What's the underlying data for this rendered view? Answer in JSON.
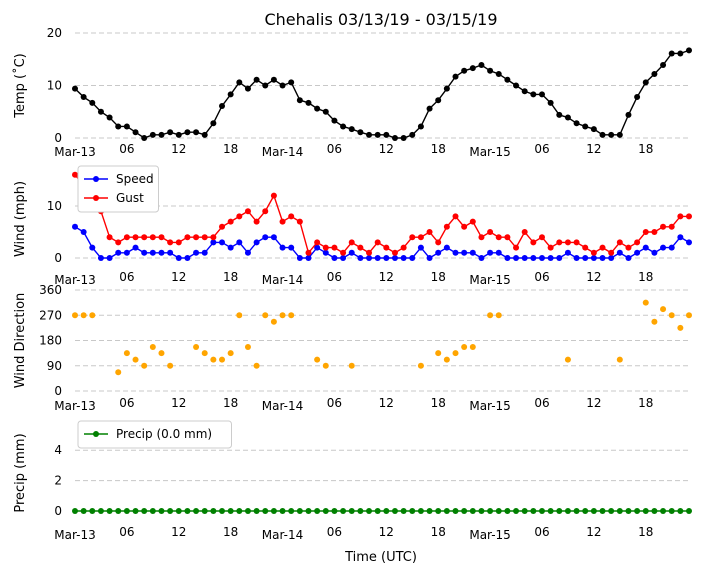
{
  "title": "Chehalis 03/13/19 - 03/15/19",
  "xlabel": "Time (UTC)",
  "x_tick_labels": [
    "Mar-13",
    "06",
    "12",
    "18",
    "Mar-14",
    "06",
    "12",
    "18",
    "Mar-15",
    "06",
    "12",
    "18"
  ],
  "x_tick_hours": [
    0,
    6,
    12,
    18,
    24,
    30,
    36,
    42,
    48,
    54,
    60,
    66
  ],
  "chart_data": [
    {
      "type": "line",
      "ylabel": "Temp (˚C)",
      "ylim": [
        0,
        20
      ],
      "yticks": [
        0,
        10,
        20
      ],
      "grid": true,
      "series": [
        {
          "color": "#000000",
          "x": [
            0,
            1,
            2,
            3,
            4,
            5,
            6,
            7,
            8,
            9,
            10,
            11,
            12,
            13,
            14,
            15,
            16,
            17,
            18,
            19,
            20,
            21,
            22,
            23,
            24,
            25,
            26,
            27,
            28,
            29,
            30,
            31,
            32,
            33,
            34,
            35,
            36,
            37,
            38,
            39,
            40,
            41,
            42,
            43,
            44,
            45,
            46,
            47,
            48,
            49,
            50,
            51,
            52,
            53,
            54,
            55,
            56,
            57,
            58,
            59,
            60,
            61,
            62,
            63,
            64,
            65,
            66,
            67,
            68,
            69,
            70,
            71
          ],
          "values": [
            9.4,
            7.8,
            6.7,
            5.0,
            3.9,
            2.2,
            2.2,
            1.1,
            0.0,
            0.6,
            0.6,
            1.1,
            0.6,
            1.1,
            1.1,
            0.6,
            2.8,
            6.1,
            8.3,
            10.6,
            9.4,
            11.1,
            10.0,
            11.1,
            10.0,
            10.6,
            7.2,
            6.7,
            5.6,
            5.0,
            3.3,
            2.2,
            1.7,
            1.1,
            0.6,
            0.6,
            0.6,
            0.0,
            0.0,
            0.6,
            2.2,
            5.6,
            7.2,
            9.4,
            11.7,
            12.8,
            13.3,
            13.9,
            12.8,
            12.2,
            11.1,
            10.0,
            8.9,
            8.3,
            8.3,
            6.7,
            4.4,
            3.9,
            2.8,
            2.2,
            1.7,
            0.6,
            0.6,
            0.6,
            4.4,
            7.8,
            10.6,
            12.2,
            13.9,
            16.1,
            16.1,
            16.7
          ]
        }
      ]
    },
    {
      "type": "line",
      "ylabel": "Wind (mph)",
      "ylim": [
        0,
        15
      ],
      "yticks": [
        0,
        10
      ],
      "grid": true,
      "legend": "top-left",
      "series": [
        {
          "name": "Speed",
          "color": "#0000ff",
          "x": [
            0,
            1,
            2,
            3,
            4,
            5,
            6,
            7,
            8,
            9,
            10,
            11,
            12,
            13,
            14,
            15,
            16,
            17,
            18,
            19,
            20,
            21,
            22,
            23,
            24,
            25,
            26,
            27,
            28,
            29,
            30,
            31,
            32,
            33,
            34,
            35,
            36,
            37,
            38,
            39,
            40,
            41,
            42,
            43,
            44,
            45,
            46,
            47,
            48,
            49,
            50,
            51,
            52,
            53,
            54,
            55,
            56,
            57,
            58,
            59,
            60,
            61,
            62,
            63,
            64,
            65,
            66,
            67,
            68,
            69,
            70,
            71
          ],
          "values": [
            6,
            5,
            2,
            0,
            0,
            1,
            1,
            2,
            1,
            1,
            1,
            1,
            0,
            0,
            1,
            1,
            3,
            3,
            2,
            3,
            1,
            3,
            4,
            4,
            2,
            2,
            0,
            0,
            2,
            1,
            0,
            0,
            1,
            0,
            0,
            0,
            0,
            0,
            0,
            0,
            2,
            0,
            1,
            2,
            1,
            1,
            1,
            0,
            1,
            1,
            0,
            0,
            0,
            0,
            0,
            0,
            0,
            1,
            0,
            0,
            0,
            0,
            0,
            1,
            0,
            1,
            2,
            1,
            2,
            2,
            4,
            3
          ]
        },
        {
          "name": "Gust",
          "color": "#ff0000",
          "x": [
            0,
            1,
            2,
            3,
            4,
            5,
            6,
            7,
            8,
            9,
            10,
            11,
            12,
            13,
            14,
            15,
            16,
            17,
            18,
            19,
            20,
            21,
            22,
            23,
            24,
            25,
            26,
            27,
            28,
            29,
            30,
            31,
            32,
            33,
            34,
            35,
            36,
            37,
            38,
            39,
            40,
            41,
            42,
            43,
            44,
            45,
            46,
            47,
            48,
            49,
            50,
            51,
            52,
            53,
            54,
            55,
            56,
            57,
            58,
            59,
            60,
            61,
            62,
            63,
            64,
            65,
            66,
            67,
            68,
            69,
            70,
            71
          ],
          "values": [
            16,
            14,
            14,
            9,
            4,
            3,
            4,
            4,
            4,
            4,
            4,
            3,
            3,
            4,
            4,
            4,
            4,
            6,
            7,
            8,
            9,
            7,
            9,
            12,
            7,
            8,
            7,
            1,
            3,
            2,
            2,
            1,
            3,
            2,
            1,
            3,
            2,
            1,
            2,
            4,
            4,
            5,
            3,
            6,
            8,
            6,
            7,
            4,
            5,
            4,
            4,
            2,
            5,
            3,
            4,
            2,
            3,
            3,
            3,
            2,
            1,
            2,
            1,
            3,
            2,
            3,
            5,
            5,
            6,
            6,
            8,
            8
          ]
        }
      ]
    },
    {
      "type": "scatter",
      "ylabel": "Wind Direction",
      "ylim": [
        0,
        360
      ],
      "yticks": [
        0,
        90,
        180,
        270,
        360
      ],
      "grid": true,
      "series": [
        {
          "color": "#ffa500",
          "x": [
            0,
            1,
            2,
            5,
            6,
            7,
            8,
            9,
            10,
            11,
            14,
            15,
            16,
            17,
            18,
            19,
            20,
            21,
            22,
            23,
            24,
            25,
            28,
            29,
            32,
            40,
            42,
            43,
            44,
            45,
            46,
            48,
            49,
            57,
            63,
            66,
            67,
            68,
            69,
            70,
            71
          ],
          "values": [
            270,
            270,
            270,
            67,
            135,
            112,
            90,
            157,
            135,
            90,
            157,
            135,
            112,
            112,
            135,
            270,
            157,
            90,
            270,
            247,
            270,
            270,
            112,
            90,
            90,
            90,
            135,
            112,
            135,
            157,
            157,
            270,
            270,
            112,
            112,
            315,
            247,
            292,
            270,
            225,
            270
          ]
        }
      ]
    },
    {
      "type": "line",
      "ylabel": "Precip (mm)",
      "ylim": [
        0,
        5
      ],
      "yticks": [
        0,
        2,
        4
      ],
      "grid": true,
      "legend": "top-left",
      "series": [
        {
          "name": "Precip (0.0 mm)",
          "color": "#008000",
          "x": [
            0,
            1,
            2,
            3,
            4,
            5,
            6,
            7,
            8,
            9,
            10,
            11,
            12,
            13,
            14,
            15,
            16,
            17,
            18,
            19,
            20,
            21,
            22,
            23,
            24,
            25,
            26,
            27,
            28,
            29,
            30,
            31,
            32,
            33,
            34,
            35,
            36,
            37,
            38,
            39,
            40,
            41,
            42,
            43,
            44,
            45,
            46,
            47,
            48,
            49,
            50,
            51,
            52,
            53,
            54,
            55,
            56,
            57,
            58,
            59,
            60,
            61,
            62,
            63,
            64,
            65,
            66,
            67,
            68,
            69,
            70,
            71
          ],
          "values": [
            0,
            0,
            0,
            0,
            0,
            0,
            0,
            0,
            0,
            0,
            0,
            0,
            0,
            0,
            0,
            0,
            0,
            0,
            0,
            0,
            0,
            0,
            0,
            0,
            0,
            0,
            0,
            0,
            0,
            0,
            0,
            0,
            0,
            0,
            0,
            0,
            0,
            0,
            0,
            0,
            0,
            0,
            0,
            0,
            0,
            0,
            0,
            0,
            0,
            0,
            0,
            0,
            0,
            0,
            0,
            0,
            0,
            0,
            0,
            0,
            0,
            0,
            0,
            0,
            0,
            0,
            0,
            0,
            0,
            0,
            0,
            0
          ]
        }
      ]
    }
  ]
}
